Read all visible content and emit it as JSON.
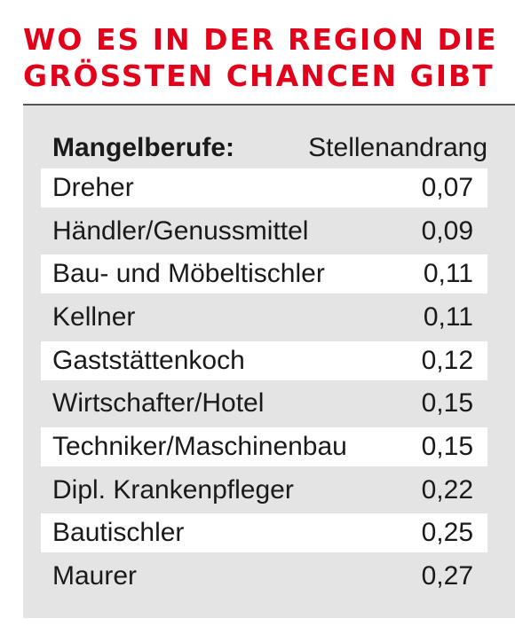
{
  "title": {
    "line1": "WO ES IN DER REGION DIE",
    "line2": "GRÖSSTEN CHANCEN GIBT"
  },
  "colors": {
    "title": "#e2001a",
    "panel": "#e4e4e4",
    "row_highlight": "#ffffff",
    "rule": "#555555"
  },
  "table": {
    "col_label": "Mangelberufe:",
    "col_value": "Stellenandrang"
  },
  "chart_data": {
    "type": "table",
    "title": "WO ES IN DER REGION DIE GRÖSSTEN CHANCEN GIBT",
    "columns": [
      "Mangelberufe:",
      "Stellenandrang"
    ],
    "rows": [
      {
        "label": "Dreher",
        "value": "0,07"
      },
      {
        "label": "Händler/Genussmittel",
        "value": "0,09"
      },
      {
        "label": "Bau- und Möbeltischler",
        "value": "0,11"
      },
      {
        "label": "Kellner",
        "value": "0,11"
      },
      {
        "label": "Gaststättenkoch",
        "value": "0,12"
      },
      {
        "label": "Wirtschafter/Hotel",
        "value": "0,15"
      },
      {
        "label": "Techniker/Maschinenbau",
        "value": "0,15"
      },
      {
        "label": "Dipl. Krankenpfleger",
        "value": "0,22"
      },
      {
        "label": "Bautischler",
        "value": "0,25"
      },
      {
        "label": "Maurer",
        "value": "0,27"
      }
    ]
  }
}
